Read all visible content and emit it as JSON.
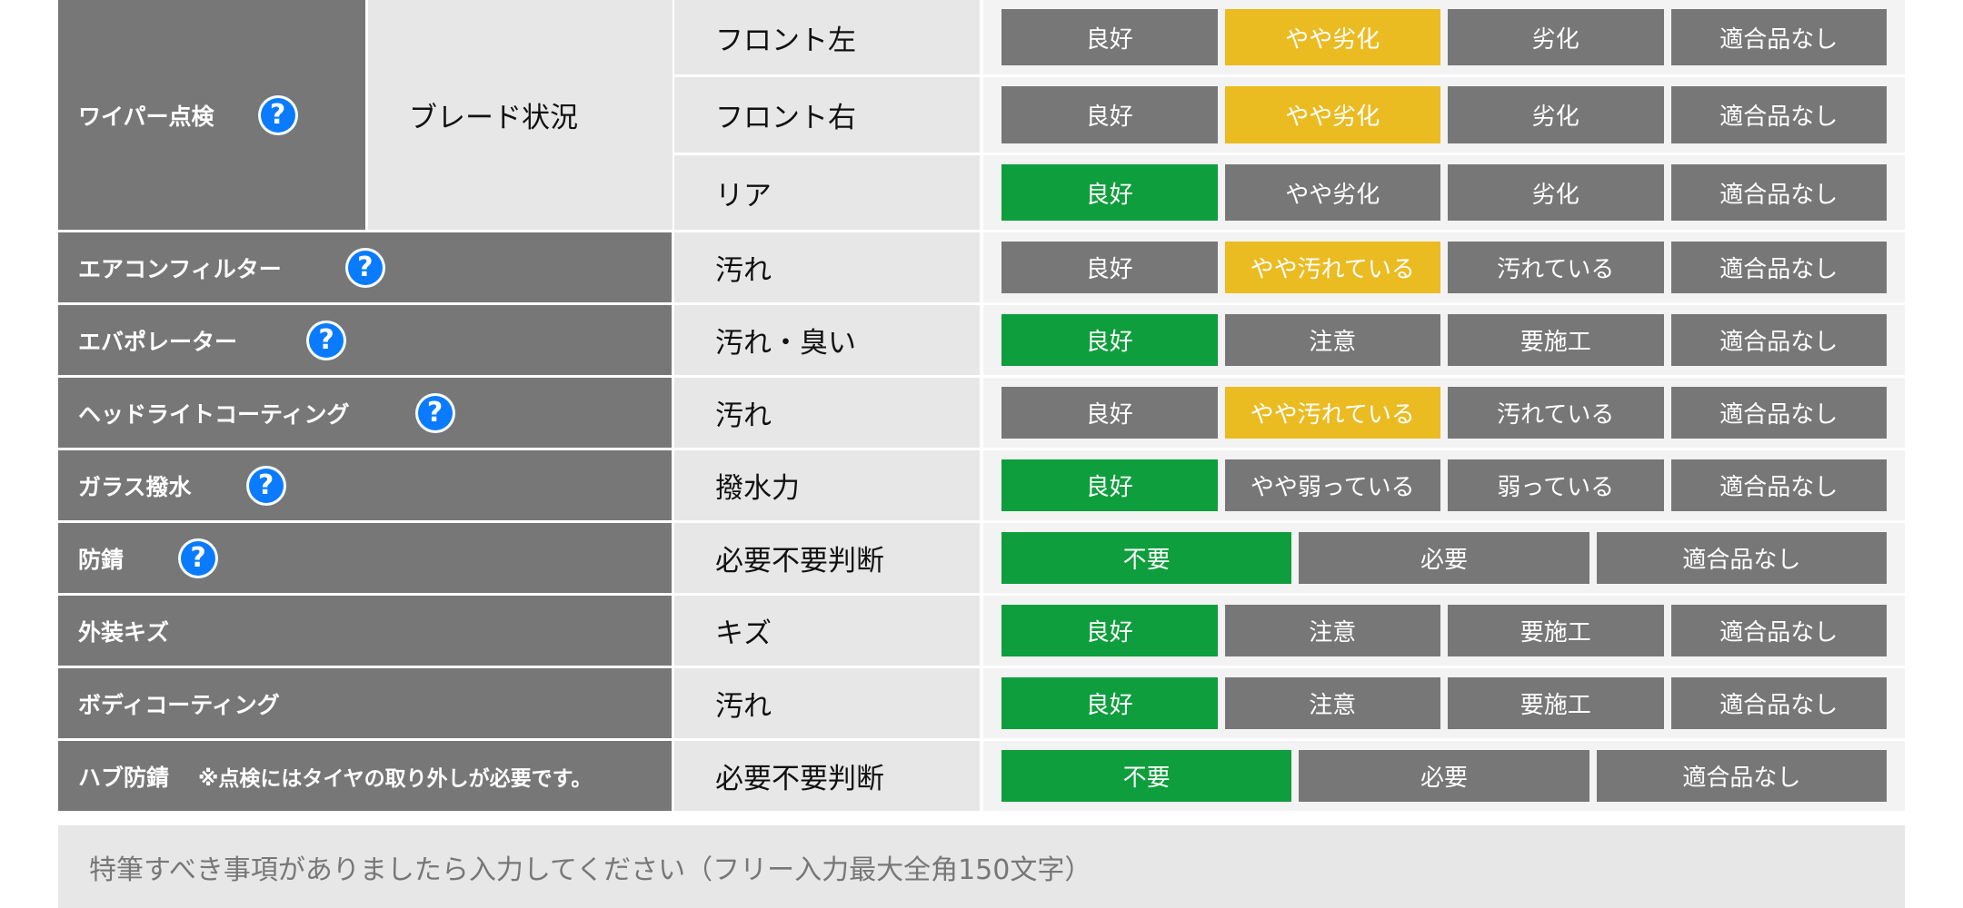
{
  "wiper": {
    "category": "ワイパー点検",
    "sub": "ブレード状況",
    "rows": [
      {
        "item": "フロント左",
        "options": [
          "良好",
          "やや劣化",
          "劣化",
          "適合品なし"
        ],
        "selected": 1,
        "selected_color": "yellow"
      },
      {
        "item": "フロント右",
        "options": [
          "良好",
          "やや劣化",
          "劣化",
          "適合品なし"
        ],
        "selected": 1,
        "selected_color": "yellow"
      },
      {
        "item": "リア",
        "options": [
          "良好",
          "やや劣化",
          "劣化",
          "適合品なし"
        ],
        "selected": 0,
        "selected_color": "green"
      }
    ]
  },
  "rows": [
    {
      "category": "エアコンフィルター",
      "help": true,
      "item": "汚れ",
      "options": [
        "良好",
        "やや汚れている",
        "汚れている",
        "適合品なし"
      ],
      "selected": 1,
      "selected_color": "yellow"
    },
    {
      "category": "エバポレーター",
      "help": true,
      "item": "汚れ・臭い",
      "options": [
        "良好",
        "注意",
        "要施工",
        "適合品なし"
      ],
      "selected": 0,
      "selected_color": "green"
    },
    {
      "category": "ヘッドライトコーティング",
      "help": true,
      "item": "汚れ",
      "options": [
        "良好",
        "やや汚れている",
        "汚れている",
        "適合品なし"
      ],
      "selected": 1,
      "selected_color": "yellow"
    },
    {
      "category": "ガラス撥水",
      "help": true,
      "item": "撥水力",
      "options": [
        "良好",
        "やや弱っている",
        "弱っている",
        "適合品なし"
      ],
      "selected": 0,
      "selected_color": "green"
    },
    {
      "category": "防錆",
      "help": true,
      "item": "必要不要判断",
      "options": [
        "不要",
        "必要",
        "適合品なし"
      ],
      "selected": 0,
      "selected_color": "green"
    },
    {
      "category": "外装キズ",
      "help": false,
      "item": "キズ",
      "options": [
        "良好",
        "注意",
        "要施工",
        "適合品なし"
      ],
      "selected": 0,
      "selected_color": "green"
    },
    {
      "category": "ボディコーティング",
      "help": false,
      "item": "汚れ",
      "options": [
        "良好",
        "注意",
        "要施工",
        "適合品なし"
      ],
      "selected": 0,
      "selected_color": "green"
    },
    {
      "category": "ハブ防錆",
      "help": false,
      "note": "※点検にはタイヤの取り外しが必要です。",
      "item": "必要不要判断",
      "options": [
        "不要",
        "必要",
        "適合品なし"
      ],
      "selected": 0,
      "selected_color": "green"
    }
  ],
  "help_icon": {
    "glyph": "?",
    "icon": "question-circle-icon",
    "color": "#0a7bff"
  },
  "memo": {
    "placeholder": "特筆すべき事項がありましたら入力してください（フリー入力最大全角150文字）"
  },
  "colors": {
    "cell_gray": "#777777",
    "light_cell": "#e7e7e7",
    "selected_yellow": "#ebbb22",
    "selected_green": "#0f9e3d"
  }
}
